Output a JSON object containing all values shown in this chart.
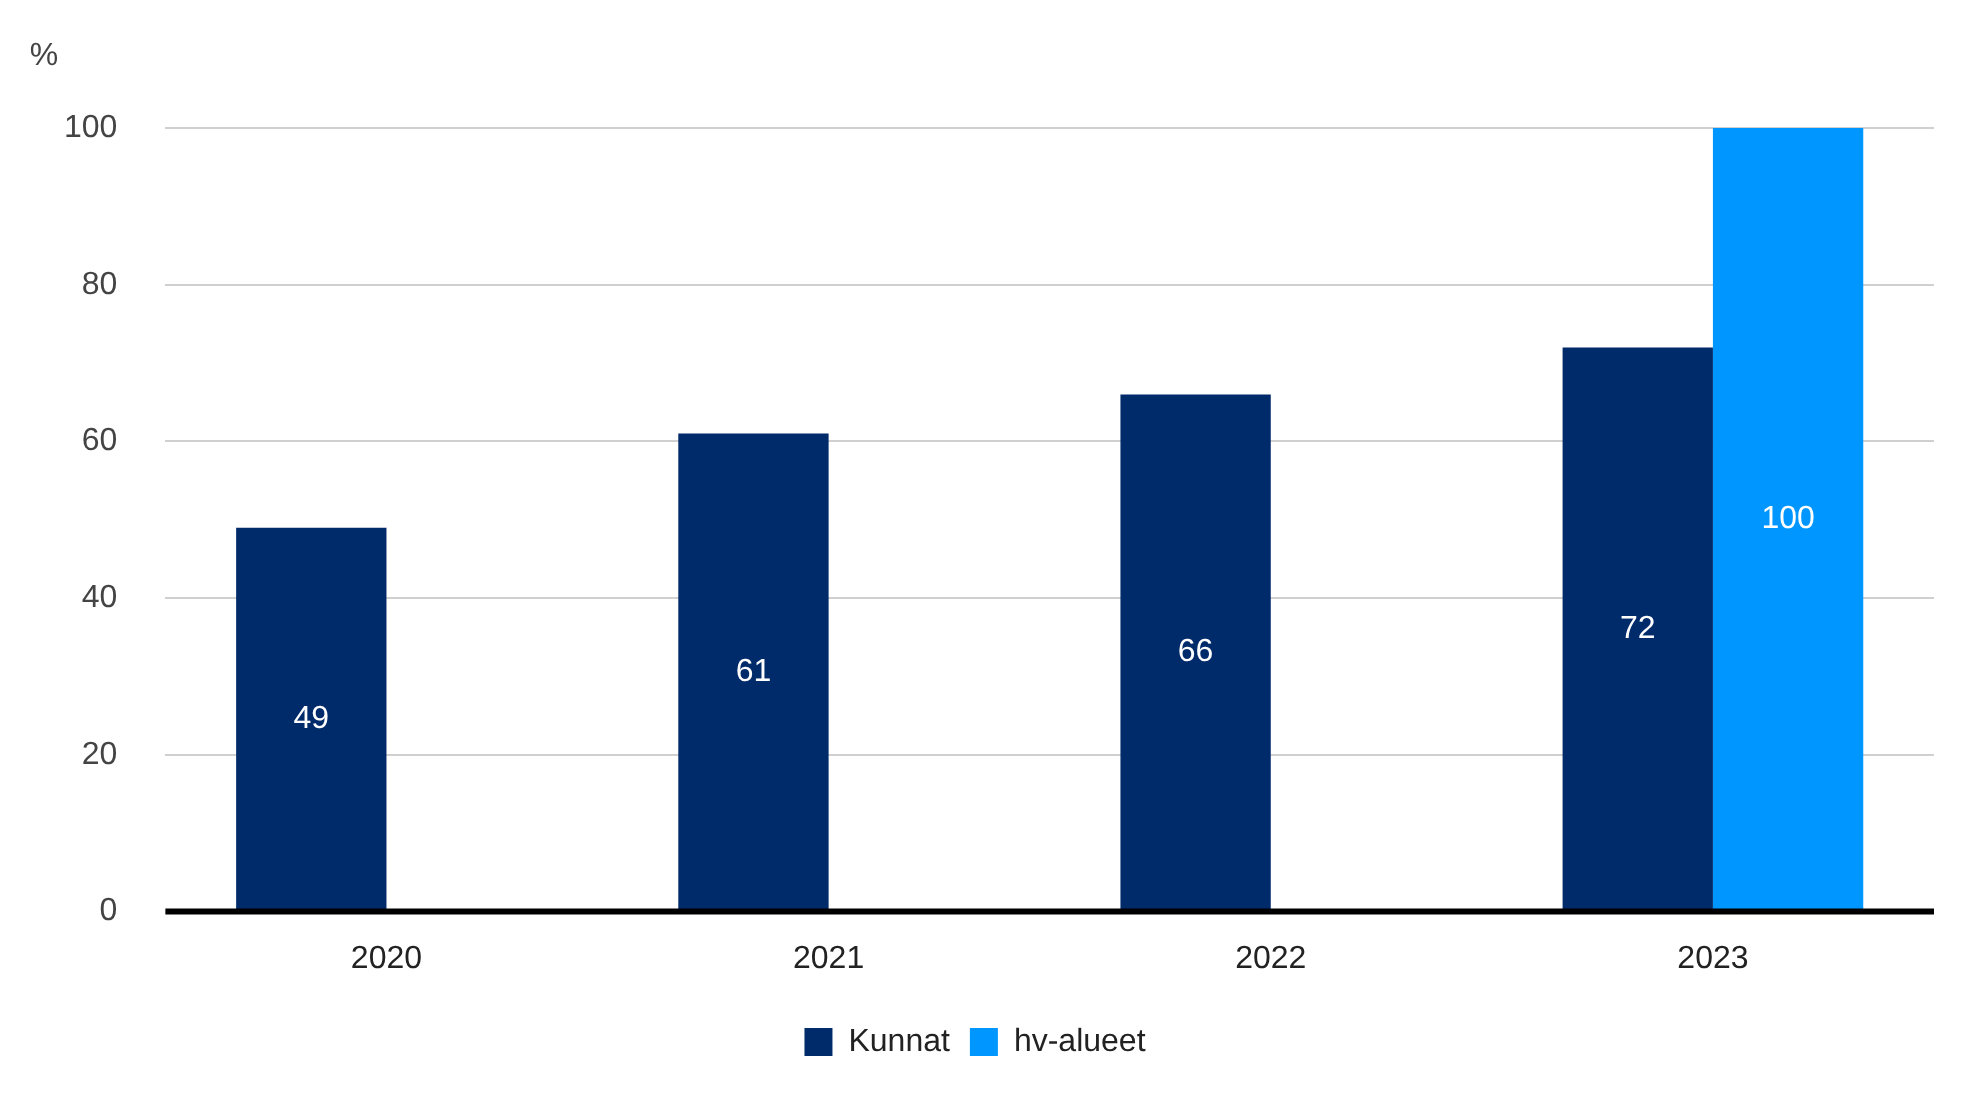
{
  "chart_data": {
    "type": "bar",
    "ylabel": "%",
    "categories": [
      "2020",
      "2021",
      "2022",
      "2023"
    ],
    "series": [
      {
        "name": "Kunnat",
        "color": "#002b6b",
        "values": [
          49,
          61,
          66,
          72
        ]
      },
      {
        "name": "hv-alueet",
        "color": "#0096ff",
        "values": [
          null,
          null,
          null,
          100
        ]
      }
    ],
    "ylim": [
      0,
      100
    ],
    "yticks": [
      0,
      20,
      40,
      60,
      80,
      100
    ],
    "grid": "y",
    "legend": "bottom",
    "data_labels": true
  }
}
